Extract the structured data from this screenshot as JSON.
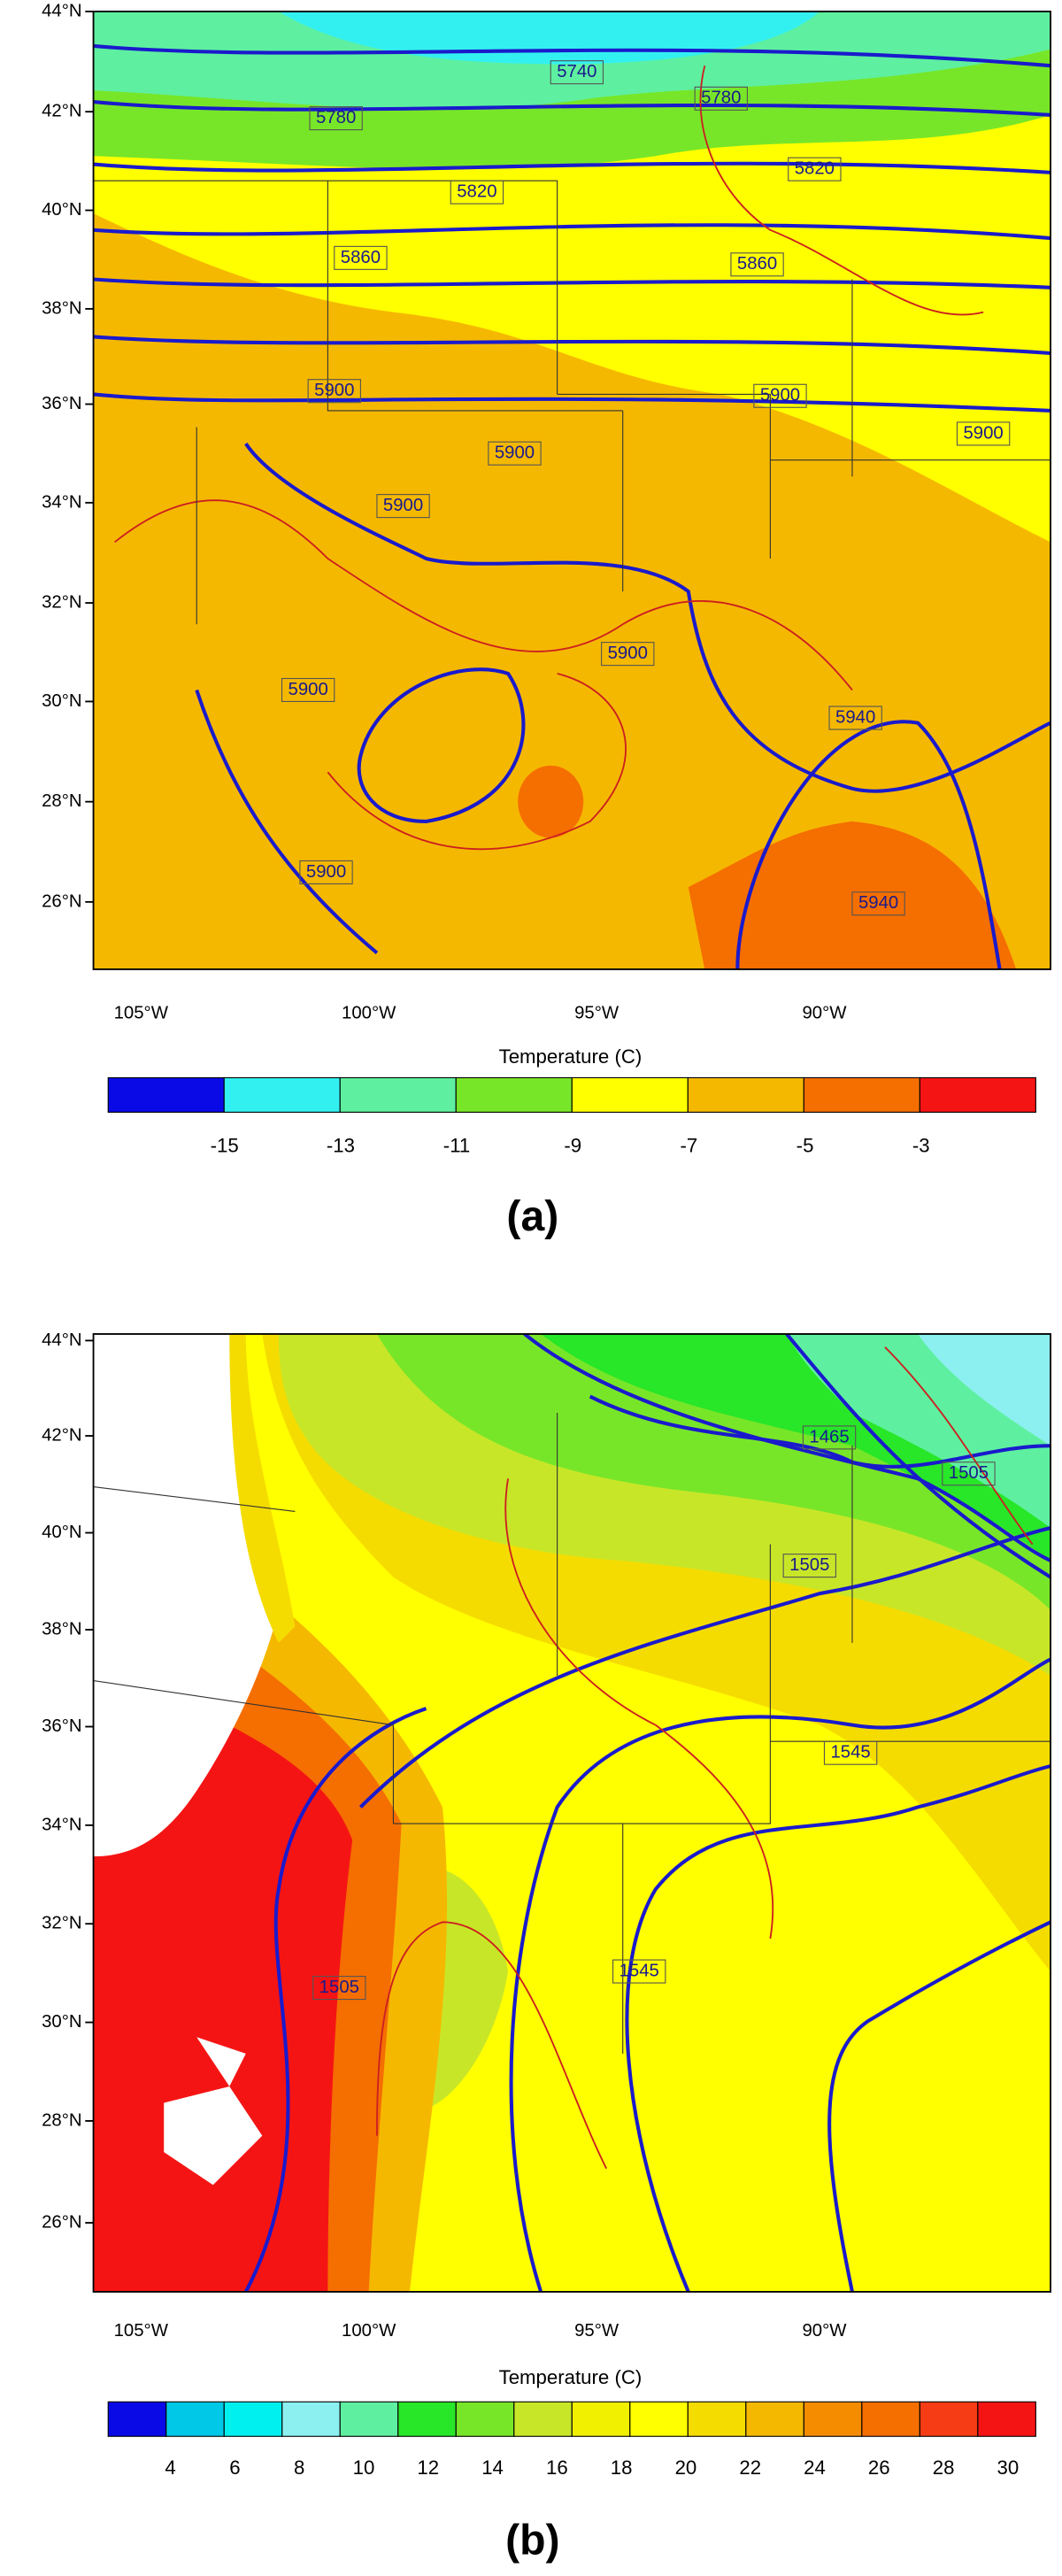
{
  "panels": [
    {
      "caption": "(a)",
      "lat_labels": [
        "44°N",
        "42°N",
        "40°N",
        "38°N",
        "36°N",
        "34°N",
        "32°N",
        "30°N",
        "28°N",
        "26°N"
      ],
      "lon_labels": [
        "105°W",
        "100°W",
        "95°W",
        "90°W"
      ],
      "contour_labels": [
        5740,
        5780,
        5780,
        5820,
        5820,
        5860,
        5860,
        5900,
        5900,
        5900,
        5900,
        5900,
        5900,
        5900,
        5940,
        5900,
        5940
      ],
      "colorbar": {
        "title": "Temperature  (C)",
        "colors": [
          "#0a0ae6",
          "#33f0f0",
          "#5ef0a0",
          "#78e628",
          "#ffff00",
          "#f5b800",
          "#f56e00",
          "#f51414"
        ],
        "labels": [
          -15,
          -13,
          -11,
          -9,
          -7,
          -5,
          -3
        ]
      }
    },
    {
      "caption": "(b)",
      "lat_labels": [
        "44°N",
        "42°N",
        "40°N",
        "38°N",
        "36°N",
        "34°N",
        "32°N",
        "30°N",
        "28°N",
        "26°N"
      ],
      "lon_labels": [
        "105°W",
        "100°W",
        "95°W",
        "90°W"
      ],
      "contour_labels": [
        1465,
        1505,
        1505,
        1545,
        1545,
        1505
      ],
      "colorbar": {
        "title": "Temperature  (C)",
        "colors": [
          "#0a0ae6",
          "#00c8e6",
          "#00f0f0",
          "#8cf0f0",
          "#5ef0a0",
          "#28e628",
          "#78e628",
          "#c8e628",
          "#f0f000",
          "#ffff00",
          "#f5dc00",
          "#f5b800",
          "#f58c00",
          "#f56e00",
          "#f53c14",
          "#f51414"
        ],
        "labels": [
          4,
          6,
          8,
          10,
          12,
          14,
          16,
          18,
          20,
          22,
          24,
          26,
          28,
          30
        ]
      }
    }
  ]
}
